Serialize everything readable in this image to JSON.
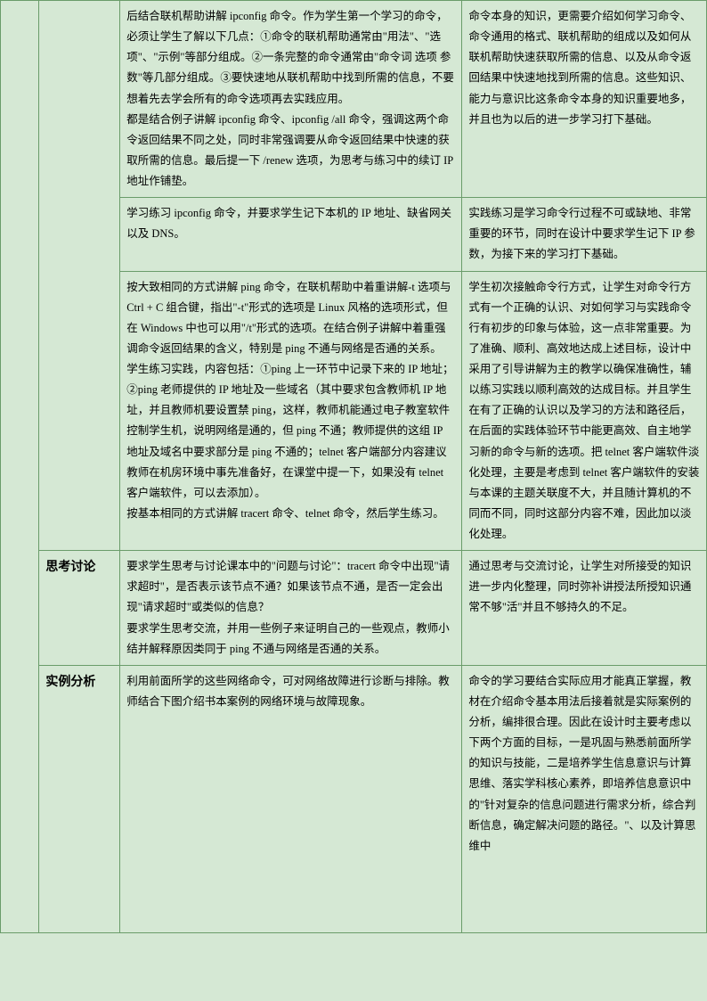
{
  "rows": [
    {
      "col1": "",
      "col2": "",
      "c3": "后结合联机帮助讲解 ipconfig 命令。作为学生第一个学习的命令，必须让学生了解以下几点：①命令的联机帮助通常由\"用法\"、\"选项\"、\"示例\"等部分组成。②一条完整的命令通常由\"命令词 选项 参数\"等几部分组成。③要快速地从联机帮助中找到所需的信息，不要想着先去学会所有的命令选项再去实践应用。\n都是结合例子讲解 ipconfig 命令、ipconfig /all 命令，强调这两个命令返回结果不同之处，同时非常强调要从命令返回结果中快速的获取所需的信息。最后提一下 /renew 选项，为思考与练习中的续订 IP 地址作铺垫。",
      "c4": "命令本身的知识，更需要介绍如何学习命令、命令通用的格式、联机帮助的组成以及如何从联机帮助快速获取所需的信息、以及从命令返回结果中快速地找到所需的信息。这些知识、能力与意识比这条命令本身的知识重要地多，并且也为以后的进一步学习打下基础。"
    },
    {
      "c3": "学习练习 ipconfig 命令，并要求学生记下本机的 IP 地址、缺省网关以及 DNS。",
      "c4": "实践练习是学习命令行过程不可或缺地、非常重要的环节，同时在设计中要求学生记下 IP 参数，为接下来的学习打下基础。"
    },
    {
      "c3": "按大致相同的方式讲解 ping 命令，在联机帮助中着重讲解-t 选项与 Ctrl + C 组合键，指出\"-t\"形式的选项是 Linux 风格的选项形式，但在 Windows 中也可以用\"/t\"形式的选项。在结合例子讲解中着重强调命令返回结果的含义，特别是 ping 不通与网络是否通的关系。\n学生练习实践，内容包括：①ping 上一环节中记录下来的 IP 地址；②ping 老师提供的 IP 地址及一些域名（其中要求包含教师机 IP 地址，并且教师机要设置禁 ping，这样，教师机能通过电子教室软件控制学生机，说明网络是通的，但 ping 不通；教师提供的这组 IP 地址及域名中要求部分是 ping 不通的；telnet 客户端部分内容建议教师在机房环境中事先准备好，在课堂中提一下，如果没有 telnet 客户端软件，可以去添加）。\n按基本相同的方式讲解 tracert 命令、telnet 命令，然后学生练习。",
      "c4": "学生初次接触命令行方式，让学生对命令行方式有一个正确的认识、对如何学习与实践命令行有初步的印象与体验，这一点非常重要。为了准确、顺利、高效地达成上述目标，设计中采用了引导讲解为主的教学以确保准确性，辅以练习实践以顺利高效的达成目标。并且学生在有了正确的认识以及学习的方法和路径后，在后面的实践体验环节中能更高效、自主地学习新的命令与新的选项。把 telnet 客户端软件淡化处理，主要是考虑到 telnet 客户端软件的安装与本课的主题关联度不大，并且随计算机的不同而不同，同时这部分内容不难，因此加以淡化处理。"
    },
    {
      "col2": "思考讨论",
      "c3": "要求学生思考与讨论课本中的\"问题与讨论\"：tracert 命令中出现\"请求超时\"，是否表示该节点不通？如果该节点不通，是否一定会出现\"请求超时\"或类似的信息？\n要求学生思考交流，并用一些例子来证明自己的一些观点，教师小结并解释原因类同于 ping 不通与网络是否通的关系。",
      "c4": "通过思考与交流讨论，让学生对所接受的知识进一步内化整理，同时弥补讲授法所授知识通常不够\"活\"并且不够持久的不足。"
    },
    {
      "col2": "实例分析",
      "c3": "利用前面所学的这些网络命令，可对网络故障进行诊断与排除。教师结合下图介绍书本案例的网络环境与故障现象。",
      "c4": "命令的学习要结合实际应用才能真正掌握，教材在介绍命令基本用法后接着就是实际案例的分析，编排很合理。因此在设计时主要考虑以下两个方面的目标，一是巩固与熟悉前面所学的知识与技能，二是培养学生信息意识与计算思维、落实学科核心素养，即培养信息意识中的\"针对复杂的信息问题进行需求分析，综合判断信息，确定解决问题的路径。\"、以及计算思维中"
    }
  ]
}
